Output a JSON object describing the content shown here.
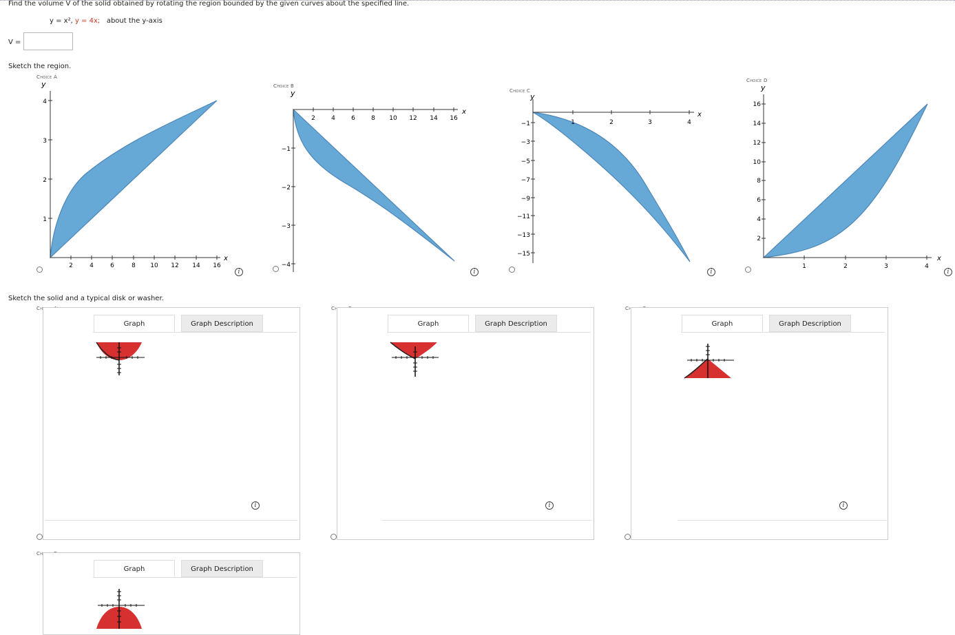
{
  "question": {
    "text": "Find the volume V of the solid obtained by rotating the region bounded by the given curves about the specified line.",
    "eq1": "y = x², ",
    "eq2": "y = 4x;",
    "eq3": "about the y-axis"
  },
  "answer": {
    "label": "V =",
    "value": ""
  },
  "sketch_region": {
    "label": "Sketch the region.",
    "choices": [
      {
        "label": "Choice A",
        "y_label": "y",
        "x_label": "x",
        "x_ticks": [
          "2",
          "4",
          "6",
          "8",
          "10",
          "12",
          "14",
          "16"
        ],
        "y_ticks": [
          "1",
          "2",
          "3",
          "4"
        ]
      },
      {
        "label": "Choice B",
        "y_label": "y",
        "x_label": "x",
        "x_ticks": [
          "2",
          "4",
          "6",
          "8",
          "10",
          "12",
          "14",
          "16"
        ],
        "y_ticks": [
          "−1",
          "−2",
          "−3",
          "−4"
        ]
      },
      {
        "label": "Choice C",
        "y_label": "y",
        "x_label": "x",
        "x_ticks": [
          "1",
          "2",
          "3",
          "4"
        ],
        "y_ticks": [
          "−1",
          "−3",
          "−5",
          "−7",
          "−9",
          "−11",
          "−13",
          "−15"
        ]
      },
      {
        "label": "Choice D",
        "y_label": "y",
        "x_label": "x",
        "x_ticks": [
          "1",
          "2",
          "3",
          "4"
        ],
        "y_ticks": [
          "2",
          "4",
          "6",
          "8",
          "10",
          "12",
          "14",
          "16"
        ]
      }
    ],
    "colors": {
      "region_fill": "#66a8d6",
      "region_stroke": "#4d86b8"
    }
  },
  "sketch_solid": {
    "label": "Sketch the solid and a typical disk or washer.",
    "tab_graph": "Graph",
    "tab_description": "Graph Description",
    "choices": [
      {
        "label": "Choice A"
      },
      {
        "label": "Choice B"
      },
      {
        "label": "Choice C"
      },
      {
        "label": "Choice D"
      }
    ],
    "colors": {
      "solid_fill": "#d63030"
    }
  }
}
